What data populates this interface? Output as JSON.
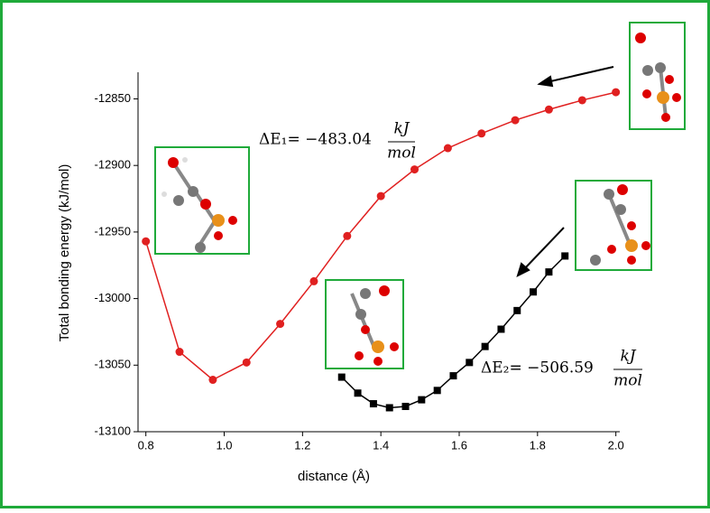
{
  "chart_data": {
    "type": "line",
    "xlabel": "distance (Å)",
    "ylabel": "Total bonding energy (kJ/mol)",
    "xlim": [
      0.78,
      2.01
    ],
    "ylim": [
      -13100,
      -12830
    ],
    "xticks": [
      0.8,
      {
        "value": 1,
        "label": "1.0"
      },
      1.2,
      1.4,
      1.6,
      1.8,
      {
        "value": 2,
        "label": "2.0"
      }
    ],
    "yticks": [
      -13100,
      -13050,
      -13000,
      -12950,
      -12900,
      -12850
    ],
    "series": [
      {
        "color": "#e02020",
        "marker": "circle",
        "x": [
          0.8,
          0.886,
          0.971,
          1.057,
          1.143,
          1.229,
          1.314,
          1.4,
          1.486,
          1.571,
          1.657,
          1.743,
          1.829,
          1.914,
          2.0
        ],
        "values": [
          -12957,
          -13040,
          -13061,
          -13048,
          -13019,
          -12987,
          -12953,
          -12923,
          -12903,
          -12887,
          -12876,
          -12866,
          -12858,
          -12851,
          -12845
        ]
      },
      {
        "color": "#000000",
        "marker": "square",
        "x": [
          1.3,
          1.341,
          1.381,
          1.422,
          1.463,
          1.504,
          1.544,
          1.585,
          1.626,
          1.666,
          1.707,
          1.748,
          1.789,
          1.829,
          1.87
        ],
        "values": [
          -13059,
          -13071,
          -13079,
          -13082,
          -13081,
          -13076,
          -13069,
          -13058,
          -13048,
          -13036,
          -13023,
          -13009,
          -12995,
          -12980,
          -12968
        ]
      }
    ],
    "annotations": [
      {
        "lhs": "ΔE₁= −483.04",
        "numerator": "kJ",
        "denominator": "mol"
      },
      {
        "lhs": "ΔE₂= −506.59",
        "numerator": "kJ",
        "denominator": "mol"
      }
    ]
  }
}
